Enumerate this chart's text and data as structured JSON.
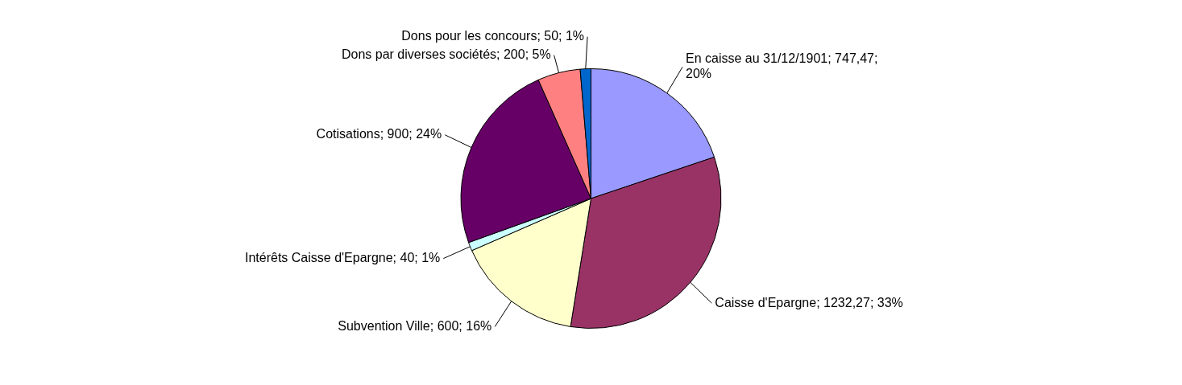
{
  "chart_data": {
    "type": "pie",
    "categories": [
      "En caisse au 31/12/1901",
      "Caisse d'Epargne",
      "Subvention Ville",
      "Intérêts Caisse d'Epargne",
      "Cotisations",
      "Dons par diverses sociétés",
      "Dons pour les concours"
    ],
    "values": [
      747.47,
      1232.27,
      600,
      40,
      900,
      200,
      50
    ],
    "value_labels": [
      "747,47; 20%",
      "1232,27; 33%",
      "600; 16%",
      "40; 1%",
      "900; 24%",
      "200; 5%",
      "50; 1%"
    ],
    "colors": [
      "#9999ff",
      "#993366",
      "#ffffcc",
      "#ccffff",
      "#660066",
      "#ff8080",
      "#0066cc"
    ],
    "legend": false
  }
}
